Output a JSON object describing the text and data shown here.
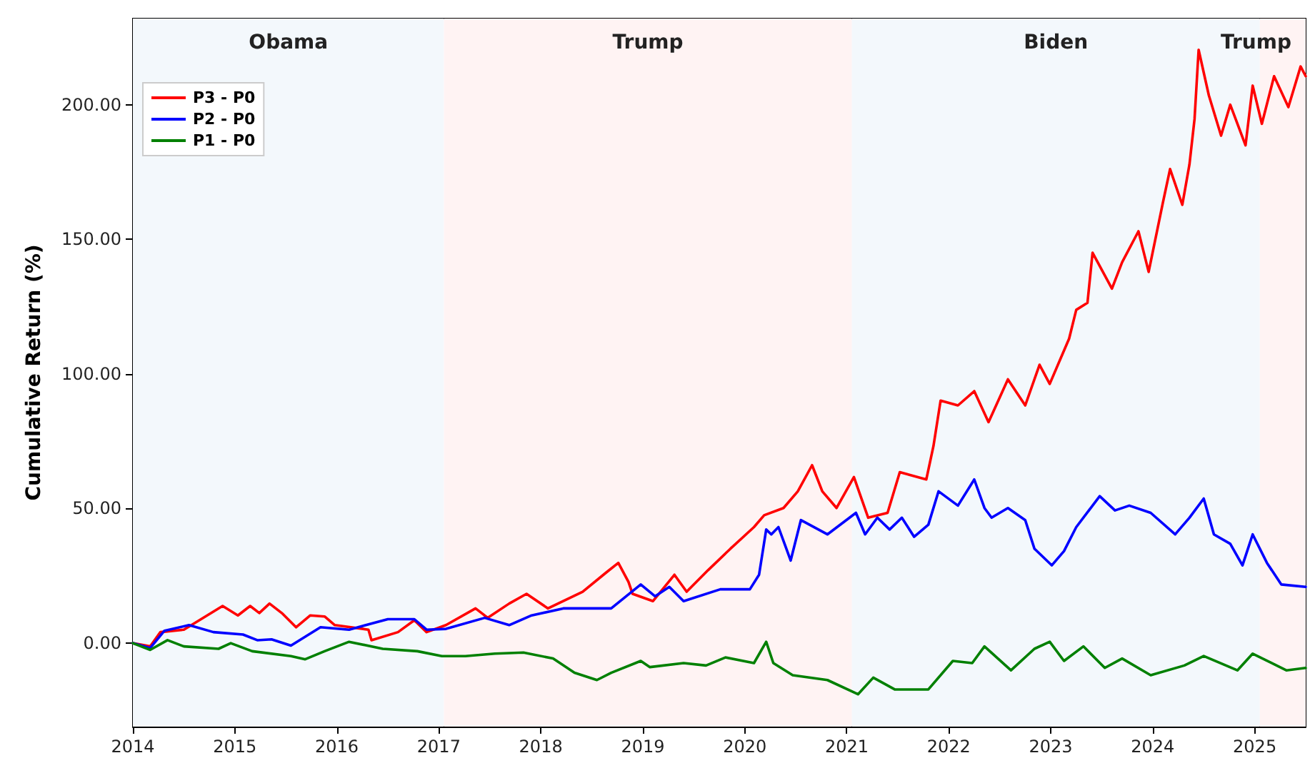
{
  "chart_data": {
    "type": "line",
    "ylabel": "Cumulative Return (%)",
    "xlim": [
      2014,
      2025.5
    ],
    "xticks": [
      2014,
      2015,
      2016,
      2017,
      2018,
      2019,
      2020,
      2021,
      2022,
      2023,
      2024,
      2025
    ],
    "ylim": [
      -31,
      232
    ],
    "yticks": [
      {
        "value": 0,
        "label": "0.00"
      },
      {
        "value": 50,
        "label": "50.00"
      },
      {
        "value": 100,
        "label": "100.00"
      },
      {
        "value": 150,
        "label": "150.00"
      },
      {
        "value": 200,
        "label": "200.00"
      }
    ],
    "grid": false,
    "legend": "top left",
    "marker": "none",
    "line_style": "solid",
    "bands": [
      {
        "axis": "x",
        "from": 2014,
        "to": 2017.05,
        "label": "Obama",
        "color": "#f3f8fc"
      },
      {
        "axis": "x",
        "from": 2017.05,
        "to": 2021.05,
        "label": "Trump",
        "color": "#fff3f3"
      },
      {
        "axis": "x",
        "from": 2021.05,
        "to": 2025.05,
        "label": "Biden",
        "color": "#f3f8fc"
      },
      {
        "axis": "x",
        "from": 2025.05,
        "to": 2025.5,
        "label": "Trump",
        "color": "#fff3f3"
      }
    ],
    "series": [
      {
        "name": "P3 - P0",
        "color": "#ff0000",
        "x": [
          2014.0,
          2014.17,
          2014.27,
          2014.5,
          2014.88,
          2015.03,
          2015.15,
          2015.24,
          2015.34,
          2015.46,
          2015.6,
          2015.74,
          2015.88,
          2015.98,
          2016.31,
          2016.34,
          2016.6,
          2016.76,
          2016.88,
          2017.07,
          2017.36,
          2017.48,
          2017.69,
          2017.86,
          2018.07,
          2018.41,
          2018.64,
          2018.76,
          2018.86,
          2018.9,
          2019.1,
          2019.31,
          2019.43,
          2019.64,
          2019.86,
          2020.09,
          2020.19,
          2020.38,
          2020.52,
          2020.66,
          2020.76,
          2020.9,
          2021.07,
          2021.21,
          2021.4,
          2021.52,
          2021.78,
          2021.85,
          2021.92,
          2022.09,
          2022.25,
          2022.39,
          2022.58,
          2022.75,
          2022.89,
          2022.99,
          2023.18,
          2023.25,
          2023.36,
          2023.41,
          2023.6,
          2023.7,
          2023.86,
          2023.96,
          2024.1,
          2024.17,
          2024.29,
          2024.36,
          2024.41,
          2024.45,
          2024.55,
          2024.67,
          2024.76,
          2024.91,
          2024.98,
          2025.07,
          2025.19,
          2025.33,
          2025.45,
          2025.5
        ],
        "values": [
          0,
          -1.2,
          4.1,
          5.0,
          13.8,
          10.3,
          13.8,
          11.2,
          14.7,
          11.2,
          5.9,
          10.3,
          9.9,
          6.7,
          5.0,
          1.1,
          4.1,
          8.5,
          4.1,
          6.7,
          12.9,
          9.4,
          14.7,
          18.3,
          12.9,
          19.1,
          26.2,
          29.8,
          22.7,
          18.3,
          15.6,
          25.4,
          19.1,
          27.1,
          35.1,
          43.1,
          47.5,
          50.2,
          56.4,
          66.1,
          56.4,
          50.2,
          61.7,
          46.6,
          48.4,
          63.5,
          60.8,
          73.2,
          90.1,
          88.3,
          93.6,
          82.1,
          98.0,
          88.3,
          103.4,
          96.3,
          113.1,
          123.8,
          126.4,
          145.0,
          131.7,
          141.5,
          153.0,
          137.9,
          163.7,
          176.1,
          162.8,
          177.8,
          194.7,
          220.4,
          203.5,
          188.5,
          200.0,
          184.9,
          207.1,
          192.9,
          210.6,
          199.1,
          214.2,
          210.6
        ]
      },
      {
        "name": "P2 - P0",
        "color": "#0000ff",
        "x": [
          2014.0,
          2014.17,
          2014.31,
          2014.55,
          2014.79,
          2015.08,
          2015.22,
          2015.36,
          2015.55,
          2015.84,
          2016.12,
          2016.5,
          2016.76,
          2016.88,
          2017.07,
          2017.45,
          2017.69,
          2017.91,
          2018.22,
          2018.69,
          2018.98,
          2019.12,
          2019.26,
          2019.4,
          2019.76,
          2020.05,
          2020.14,
          2020.21,
          2020.26,
          2020.33,
          2020.45,
          2020.55,
          2020.81,
          2021.09,
          2021.18,
          2021.3,
          2021.42,
          2021.54,
          2021.66,
          2021.8,
          2021.9,
          2022.09,
          2022.25,
          2022.35,
          2022.42,
          2022.58,
          2022.75,
          2022.84,
          2023.01,
          2023.13,
          2023.25,
          2023.48,
          2023.63,
          2023.77,
          2023.98,
          2024.22,
          2024.36,
          2024.5,
          2024.6,
          2024.76,
          2024.88,
          2024.98,
          2025.12,
          2025.26,
          2025.5
        ],
        "values": [
          0,
          -1.8,
          4.6,
          6.7,
          4.1,
          3.2,
          1.1,
          1.4,
          -0.9,
          5.9,
          5.0,
          8.9,
          8.9,
          5.0,
          5.3,
          9.4,
          6.7,
          10.3,
          12.9,
          12.9,
          21.8,
          17.4,
          20.9,
          15.6,
          20.0,
          20.0,
          25.4,
          42.2,
          40.4,
          43.1,
          30.7,
          45.7,
          40.4,
          48.4,
          40.4,
          46.6,
          42.2,
          46.6,
          39.5,
          44.0,
          56.4,
          51.1,
          60.8,
          50.2,
          46.6,
          50.2,
          45.7,
          35.1,
          28.9,
          34.2,
          43.1,
          54.6,
          49.3,
          51.1,
          48.4,
          40.4,
          46.6,
          53.7,
          40.4,
          36.9,
          28.9,
          40.4,
          29.8,
          21.8,
          20.9
        ]
      },
      {
        "name": "P1 - P0",
        "color": "#008000",
        "x": [
          2014.0,
          2014.17,
          2014.34,
          2014.5,
          2014.84,
          2014.96,
          2015.17,
          2015.55,
          2015.69,
          2015.88,
          2016.12,
          2016.45,
          2016.79,
          2017.03,
          2017.26,
          2017.55,
          2017.83,
          2018.12,
          2018.33,
          2018.55,
          2018.69,
          2018.98,
          2019.07,
          2019.4,
          2019.62,
          2019.81,
          2020.09,
          2020.21,
          2020.28,
          2020.47,
          2020.81,
          2021.11,
          2021.26,
          2021.47,
          2021.8,
          2022.04,
          2022.23,
          2022.35,
          2022.61,
          2022.84,
          2022.99,
          2023.13,
          2023.32,
          2023.53,
          2023.7,
          2023.98,
          2024.31,
          2024.5,
          2024.83,
          2024.98,
          2025.31,
          2025.5
        ],
        "values": [
          0,
          -2.5,
          1.1,
          -1.2,
          -2.1,
          0,
          -3.0,
          -4.8,
          -6.0,
          -3.0,
          0.5,
          -2.1,
          -3.0,
          -4.8,
          -4.8,
          -3.9,
          -3.5,
          -5.7,
          -11.0,
          -13.7,
          -11.0,
          -6.6,
          -8.9,
          -7.4,
          -8.3,
          -5.3,
          -7.4,
          0.5,
          -7.4,
          -11.9,
          -13.7,
          -19.0,
          -12.8,
          -17.2,
          -17.2,
          -6.6,
          -7.4,
          -1.2,
          -10.1,
          -2.1,
          0.5,
          -6.6,
          -1.2,
          -9.2,
          -5.7,
          -11.9,
          -8.3,
          -4.8,
          -10.1,
          -3.9,
          -10.1,
          -9.2
        ]
      }
    ]
  }
}
